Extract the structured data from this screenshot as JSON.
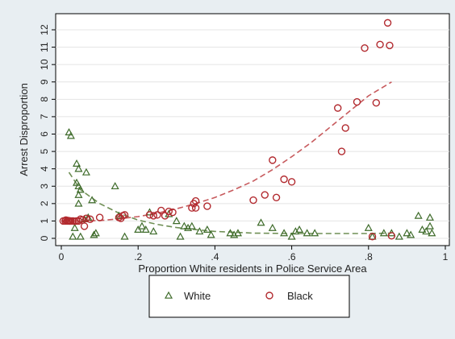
{
  "chart_data": {
    "type": "scatter",
    "xlabel": "Proportion White residents in Police Service Area",
    "ylabel": "Arrest Disproportion",
    "xlim": [
      0,
      1
    ],
    "ylim": [
      0,
      12
    ],
    "x_ticks": [
      {
        "value": 0,
        "label": "0"
      },
      {
        "value": 0.2,
        "label": ".2"
      },
      {
        "value": 0.4,
        "label": ".4"
      },
      {
        "value": 0.6,
        "label": ".6"
      },
      {
        "value": 0.8,
        "label": ".8"
      },
      {
        "value": 1,
        "label": "1"
      }
    ],
    "y_ticks": [
      {
        "value": 0,
        "label": "0"
      },
      {
        "value": 1,
        "label": "1"
      },
      {
        "value": 2,
        "label": "2"
      },
      {
        "value": 3,
        "label": "3"
      },
      {
        "value": 4,
        "label": "4"
      },
      {
        "value": 5,
        "label": "5"
      },
      {
        "value": 6,
        "label": "6"
      },
      {
        "value": 7,
        "label": "7"
      },
      {
        "value": 8,
        "label": "8"
      },
      {
        "value": 9,
        "label": "9"
      },
      {
        "value": 10,
        "label": "10"
      },
      {
        "value": 11,
        "label": "11"
      },
      {
        "value": 12,
        "label": "12"
      }
    ],
    "grid": true,
    "legend_position": "bottom",
    "series": [
      {
        "name": "White",
        "marker": "triangle",
        "color": "#3e6b2a",
        "trend_color": "#6f8f55",
        "points": [
          [
            0.02,
            6.1
          ],
          [
            0.025,
            5.9
          ],
          [
            0.03,
            0.1
          ],
          [
            0.035,
            0.6
          ],
          [
            0.04,
            4.3
          ],
          [
            0.045,
            4.0
          ],
          [
            0.04,
            3.2
          ],
          [
            0.045,
            3.0
          ],
          [
            0.05,
            2.8
          ],
          [
            0.045,
            2.5
          ],
          [
            0.045,
            2.0
          ],
          [
            0.05,
            0.1
          ],
          [
            0.06,
            1.1
          ],
          [
            0.065,
            3.8
          ],
          [
            0.07,
            1.2
          ],
          [
            0.08,
            2.2
          ],
          [
            0.085,
            0.2
          ],
          [
            0.09,
            0.3
          ],
          [
            0.14,
            3.0
          ],
          [
            0.15,
            1.3
          ],
          [
            0.165,
            0.1
          ],
          [
            0.2,
            0.5
          ],
          [
            0.21,
            0.7
          ],
          [
            0.22,
            0.5
          ],
          [
            0.23,
            1.5
          ],
          [
            0.24,
            0.4
          ],
          [
            0.28,
            1.4
          ],
          [
            0.3,
            1.0
          ],
          [
            0.31,
            0.1
          ],
          [
            0.32,
            0.7
          ],
          [
            0.33,
            0.6
          ],
          [
            0.34,
            0.7
          ],
          [
            0.36,
            0.4
          ],
          [
            0.38,
            0.5
          ],
          [
            0.39,
            0.2
          ],
          [
            0.44,
            0.3
          ],
          [
            0.45,
            0.2
          ],
          [
            0.46,
            0.3
          ],
          [
            0.52,
            0.9
          ],
          [
            0.55,
            0.6
          ],
          [
            0.58,
            0.3
          ],
          [
            0.6,
            0.1
          ],
          [
            0.61,
            0.4
          ],
          [
            0.62,
            0.5
          ],
          [
            0.64,
            0.3
          ],
          [
            0.66,
            0.3
          ],
          [
            0.8,
            0.6
          ],
          [
            0.81,
            0.1
          ],
          [
            0.84,
            0.3
          ],
          [
            0.86,
            0.3
          ],
          [
            0.88,
            0.1
          ],
          [
            0.9,
            0.3
          ],
          [
            0.91,
            0.2
          ],
          [
            0.93,
            1.3
          ],
          [
            0.94,
            0.5
          ],
          [
            0.95,
            0.4
          ],
          [
            0.96,
            1.2
          ],
          [
            0.96,
            0.7
          ],
          [
            0.965,
            0.3
          ]
        ],
        "trend": [
          [
            0.02,
            3.8
          ],
          [
            0.05,
            2.8
          ],
          [
            0.1,
            2.0
          ],
          [
            0.15,
            1.45
          ],
          [
            0.2,
            1.05
          ],
          [
            0.25,
            0.8
          ],
          [
            0.3,
            0.62
          ],
          [
            0.35,
            0.5
          ],
          [
            0.4,
            0.4
          ],
          [
            0.45,
            0.35
          ],
          [
            0.5,
            0.3
          ],
          [
            0.6,
            0.28
          ],
          [
            0.7,
            0.28
          ],
          [
            0.8,
            0.28
          ],
          [
            0.86,
            0.3
          ]
        ]
      },
      {
        "name": "Black",
        "marker": "circle",
        "color": "#b22a2f",
        "trend_color": "#c75a5d",
        "points": [
          [
            0.005,
            1.0
          ],
          [
            0.01,
            1.0
          ],
          [
            0.012,
            1.05
          ],
          [
            0.015,
            1.0
          ],
          [
            0.018,
            1.02
          ],
          [
            0.02,
            1.0
          ],
          [
            0.022,
            1.0
          ],
          [
            0.025,
            1.0
          ],
          [
            0.03,
            1.0
          ],
          [
            0.035,
            0.98
          ],
          [
            0.04,
            1.0
          ],
          [
            0.045,
            1.0
          ],
          [
            0.05,
            1.1
          ],
          [
            0.055,
            1.05
          ],
          [
            0.06,
            0.7
          ],
          [
            0.065,
            1.15
          ],
          [
            0.075,
            1.1
          ],
          [
            0.1,
            1.2
          ],
          [
            0.15,
            1.2
          ],
          [
            0.155,
            1.15
          ],
          [
            0.16,
            1.3
          ],
          [
            0.165,
            1.35
          ],
          [
            0.23,
            1.35
          ],
          [
            0.24,
            1.3
          ],
          [
            0.25,
            1.35
          ],
          [
            0.26,
            1.6
          ],
          [
            0.27,
            1.3
          ],
          [
            0.28,
            1.55
          ],
          [
            0.29,
            1.5
          ],
          [
            0.34,
            1.75
          ],
          [
            0.345,
            2.0
          ],
          [
            0.35,
            2.15
          ],
          [
            0.35,
            1.75
          ],
          [
            0.38,
            1.85
          ],
          [
            0.5,
            2.2
          ],
          [
            0.53,
            2.5
          ],
          [
            0.55,
            4.5
          ],
          [
            0.56,
            2.35
          ],
          [
            0.58,
            3.4
          ],
          [
            0.6,
            3.25
          ],
          [
            0.72,
            7.5
          ],
          [
            0.73,
            5.0
          ],
          [
            0.74,
            6.35
          ],
          [
            0.77,
            7.85
          ],
          [
            0.79,
            10.95
          ],
          [
            0.81,
            0.1
          ],
          [
            0.82,
            7.8
          ],
          [
            0.83,
            11.15
          ],
          [
            0.85,
            12.4
          ],
          [
            0.855,
            11.1
          ],
          [
            0.86,
            0.15
          ]
        ],
        "trend": [
          [
            0.005,
            1.0
          ],
          [
            0.05,
            1.0
          ],
          [
            0.1,
            1.02
          ],
          [
            0.15,
            1.12
          ],
          [
            0.2,
            1.25
          ],
          [
            0.25,
            1.45
          ],
          [
            0.3,
            1.7
          ],
          [
            0.35,
            2.0
          ],
          [
            0.4,
            2.35
          ],
          [
            0.45,
            2.8
          ],
          [
            0.5,
            3.3
          ],
          [
            0.55,
            3.95
          ],
          [
            0.6,
            4.7
          ],
          [
            0.65,
            5.5
          ],
          [
            0.7,
            6.4
          ],
          [
            0.75,
            7.3
          ],
          [
            0.8,
            8.2
          ],
          [
            0.86,
            9.0
          ]
        ]
      }
    ]
  }
}
